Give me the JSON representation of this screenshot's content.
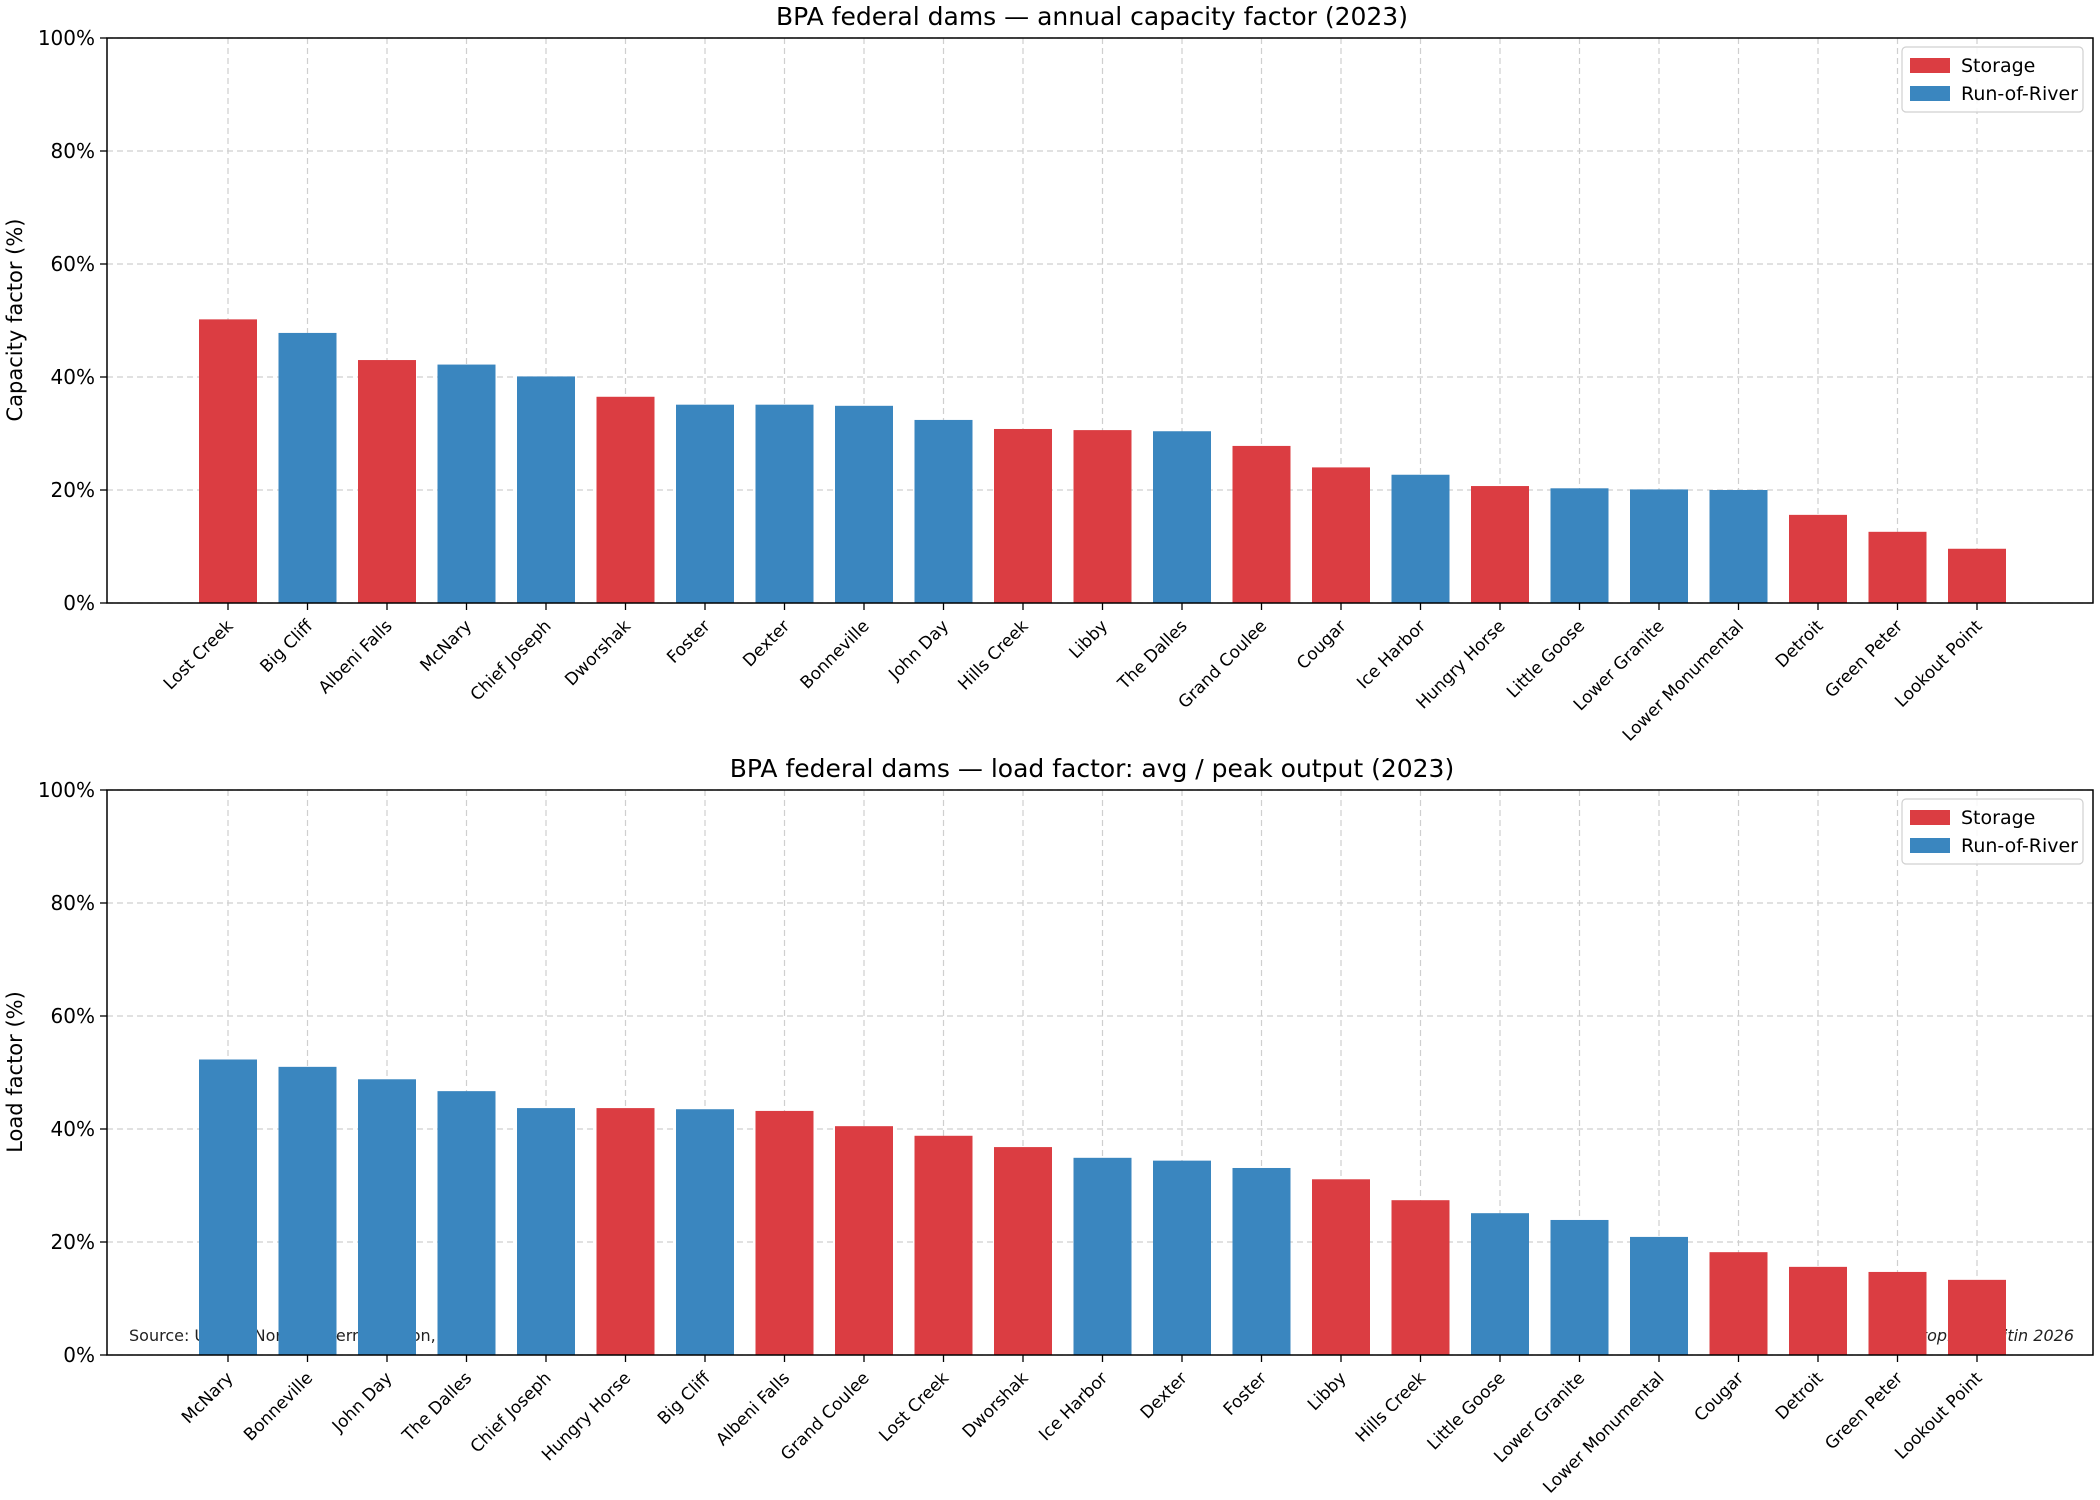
{
  "colors": {
    "storage": "#db3d42",
    "run_of_river": "#3a86bf"
  },
  "footer": {
    "source": "Source: USACE Northwestern Division, 2023",
    "credit": "Christopher Kalitin 2026"
  },
  "chart_data": [
    {
      "type": "bar",
      "title": "BPA federal dams — annual capacity factor (2023)",
      "xlabel": "",
      "ylabel": "Capacity factor (%)",
      "ylim": [
        0,
        100
      ],
      "yticks": [
        "0%",
        "20%",
        "40%",
        "60%",
        "80%",
        "100%"
      ],
      "grid": true,
      "legend": {
        "position": "top-right",
        "entries": [
          "Storage",
          "Run-of-River"
        ]
      },
      "categories": [
        "Lost Creek",
        "Big Cliff",
        "Albeni Falls",
        "McNary",
        "Chief Joseph",
        "Dworshak",
        "Foster",
        "Dexter",
        "Bonneville",
        "John Day",
        "Hills Creek",
        "Libby",
        "The Dalles",
        "Grand Coulee",
        "Cougar",
        "Ice Harbor",
        "Hungry Horse",
        "Little Goose",
        "Lower Granite",
        "Lower Monumental",
        "Detroit",
        "Green Peter",
        "Lookout Point"
      ],
      "values": [
        50.2,
        47.8,
        43.0,
        42.2,
        40.1,
        36.5,
        35.1,
        35.1,
        34.9,
        32.4,
        30.8,
        30.6,
        30.4,
        27.8,
        24.0,
        22.7,
        20.7,
        20.3,
        20.1,
        20.0,
        15.6,
        12.6,
        9.6
      ],
      "types": [
        "Storage",
        "Run-of-River",
        "Storage",
        "Run-of-River",
        "Run-of-River",
        "Storage",
        "Run-of-River",
        "Run-of-River",
        "Run-of-River",
        "Run-of-River",
        "Storage",
        "Storage",
        "Run-of-River",
        "Storage",
        "Storage",
        "Run-of-River",
        "Storage",
        "Run-of-River",
        "Run-of-River",
        "Run-of-River",
        "Storage",
        "Storage",
        "Storage"
      ]
    },
    {
      "type": "bar",
      "title": "BPA federal dams — load factor: avg / peak output (2023)",
      "xlabel": "",
      "ylabel": "Load factor (%)",
      "ylim": [
        0,
        100
      ],
      "yticks": [
        "0%",
        "20%",
        "40%",
        "60%",
        "80%",
        "100%"
      ],
      "grid": true,
      "legend": {
        "position": "top-right",
        "entries": [
          "Storage",
          "Run-of-River"
        ]
      },
      "categories": [
        "McNary",
        "Bonneville",
        "John Day",
        "The Dalles",
        "Chief Joseph",
        "Hungry Horse",
        "Big Cliff",
        "Albeni Falls",
        "Grand Coulee",
        "Lost Creek",
        "Dworshak",
        "Ice Harbor",
        "Dexter",
        "Foster",
        "Libby",
        "Hills Creek",
        "Little Goose",
        "Lower Granite",
        "Lower Monumental",
        "Cougar",
        "Detroit",
        "Green Peter",
        "Lookout Point"
      ],
      "values": [
        52.3,
        51.0,
        48.8,
        46.7,
        43.7,
        43.7,
        43.5,
        43.2,
        40.5,
        38.8,
        36.8,
        34.9,
        34.4,
        33.1,
        31.1,
        27.4,
        25.1,
        23.9,
        20.9,
        18.2,
        15.6,
        14.7,
        13.3
      ],
      "types": [
        "Run-of-River",
        "Run-of-River",
        "Run-of-River",
        "Run-of-River",
        "Run-of-River",
        "Storage",
        "Run-of-River",
        "Storage",
        "Storage",
        "Storage",
        "Storage",
        "Run-of-River",
        "Run-of-River",
        "Run-of-River",
        "Storage",
        "Storage",
        "Run-of-River",
        "Run-of-River",
        "Run-of-River",
        "Storage",
        "Storage",
        "Storage",
        "Storage"
      ]
    }
  ]
}
